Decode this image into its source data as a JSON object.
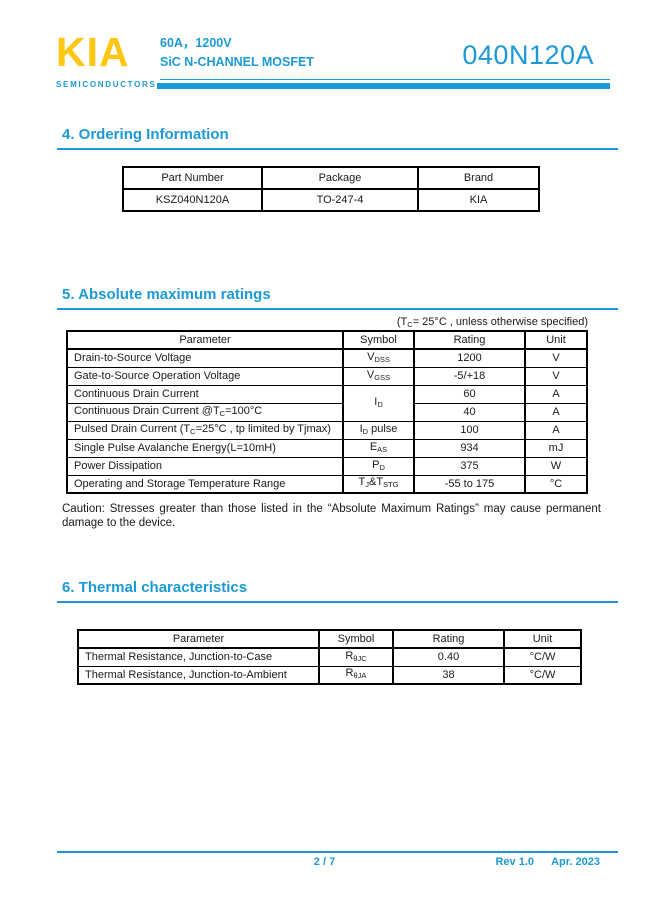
{
  "header": {
    "accent_color": "#1c9ad6",
    "logo_color": "#ffc613",
    "logo_text": "KIA",
    "logo_subtext": "SEMICONDUCTORS",
    "rating_line": "60A，1200V",
    "type_line": "SiC N-CHANNEL MOSFET",
    "part_number": "040N120A"
  },
  "ordering": {
    "heading": "4. Ordering Information",
    "headers": [
      "Part Number",
      "Package",
      "Brand"
    ],
    "row": {
      "part_number": "KSZ040N120A",
      "package": "TO-247-4",
      "brand": "KIA"
    }
  },
  "abs_max": {
    "heading": "5. Absolute maximum ratings",
    "condition_note": [
      {
        "t": "(T"
      },
      {
        "sub": "C"
      },
      {
        "t": "= 25°C , unless otherwise specified)"
      }
    ],
    "headers": [
      "Parameter",
      "Symbol",
      "Rating",
      "Unit"
    ],
    "rows": [
      {
        "param": [
          {
            "t": "Drain-to-Source Voltage"
          }
        ],
        "symbol": [
          {
            "t": "V"
          },
          {
            "sub": "DSS"
          }
        ],
        "rating": "1200",
        "unit": "V"
      },
      {
        "param": [
          {
            "t": "Gate-to-Source Operation Voltage"
          }
        ],
        "symbol": [
          {
            "t": "V"
          },
          {
            "sub": "GSS"
          }
        ],
        "rating": "-5/+18",
        "unit": "V"
      },
      {
        "param": [
          {
            "t": "Continuous Drain Current"
          }
        ],
        "symbol": [
          {
            "t": "I"
          },
          {
            "sub": "D"
          }
        ],
        "rating": "60",
        "unit": "A"
      },
      {
        "param": [
          {
            "t": "Continuous Drain Current @T"
          },
          {
            "sub": "C"
          },
          {
            "t": "=100°C"
          }
        ],
        "rating": "40",
        "unit": "A"
      },
      {
        "param": [
          {
            "t": "Pulsed Drain Current (T"
          },
          {
            "sub": "C"
          },
          {
            "t": "=25°C , tp limited by Tjmax)"
          }
        ],
        "symbol": [
          {
            "t": "I"
          },
          {
            "sub": "D"
          },
          {
            "t": " pulse"
          }
        ],
        "rating": "100",
        "unit": "A"
      },
      {
        "param": [
          {
            "t": "Single Pulse Avalanche Energy(L=10mH)"
          }
        ],
        "symbol": [
          {
            "t": "E"
          },
          {
            "sub": "AS"
          }
        ],
        "rating": "934",
        "unit": "mJ"
      },
      {
        "param": [
          {
            "t": "Power Dissipation"
          }
        ],
        "symbol": [
          {
            "t": "P"
          },
          {
            "sub": "D"
          }
        ],
        "rating": "375",
        "unit": "W"
      },
      {
        "param": [
          {
            "t": "Operating and Storage Temperature Range"
          }
        ],
        "symbol": [
          {
            "t": "T"
          },
          {
            "sub": "J"
          },
          {
            "t": "&T"
          },
          {
            "sub": "STG"
          }
        ],
        "rating": "-55 to 175",
        "unit": "°C"
      }
    ],
    "caution": "Caution: Stresses greater than those listed in the “Absolute Maximum Ratings” may cause permanent damage to the device."
  },
  "thermal": {
    "heading": "6. Thermal characteristics",
    "headers": [
      "Parameter",
      "Symbol",
      "Rating",
      "Unit"
    ],
    "rows": [
      {
        "param": [
          {
            "t": "Thermal Resistance, Junction-to-Case"
          }
        ],
        "symbol": [
          {
            "t": "R"
          },
          {
            "sub": "θJC"
          }
        ],
        "rating": "0.40",
        "unit": "°C/W"
      },
      {
        "param": [
          {
            "t": "Thermal Resistance, Junction-to-Ambient"
          }
        ],
        "symbol": [
          {
            "t": "R"
          },
          {
            "sub": "θJA"
          }
        ],
        "rating": "38",
        "unit": "°C/W"
      }
    ]
  },
  "footer": {
    "page_indicator": "2 / 7",
    "revision": "Rev 1.0",
    "date": "Apr. 2023"
  }
}
